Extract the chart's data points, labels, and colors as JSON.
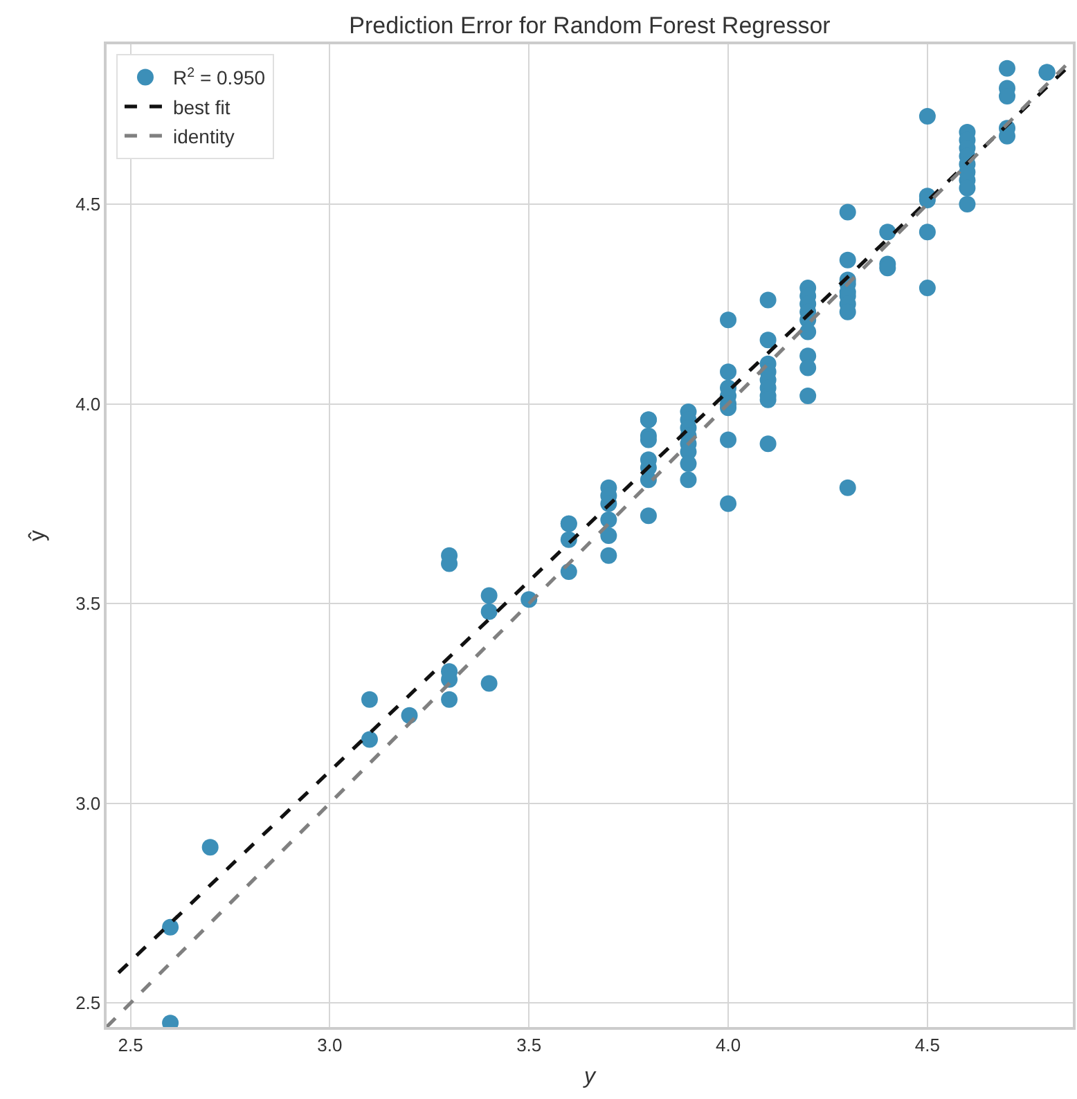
{
  "chart_data": {
    "type": "scatter",
    "title": "Prediction Error for Random Forest Regressor",
    "xlabel": "y",
    "ylabel": "ŷ",
    "xlim": [
      2.44,
      4.865
    ],
    "ylim": [
      2.44,
      4.9
    ],
    "xticks": [
      2.5,
      {
        "value": 3,
        "label": "3.0"
      },
      3.5,
      {
        "value": 4,
        "label": "4.0"
      },
      4.5
    ],
    "yticks": [
      2.5,
      {
        "value": 3,
        "label": "3.0"
      },
      3.5,
      {
        "value": 4,
        "label": "4.0"
      },
      4.5
    ],
    "grid": true,
    "legend": "top left",
    "marker": "circle",
    "series": [
      {
        "name": "R$^{2}$ = 0.950",
        "color": "#3c8fb8",
        "x": [
          2.6,
          2.6,
          2.7,
          3.1,
          3.1,
          3.2,
          3.3,
          3.3,
          3.3,
          3.3,
          3.3,
          3.4,
          3.4,
          3.4,
          3.5,
          3.6,
          3.6,
          3.6,
          3.6,
          3.7,
          3.7,
          3.7,
          3.7,
          3.7,
          3.7,
          3.8,
          3.8,
          3.8,
          3.8,
          3.8,
          3.8,
          3.8,
          3.8,
          3.9,
          3.9,
          3.9,
          3.9,
          3.9,
          3.9,
          3.9,
          3.9,
          4.0,
          4.0,
          4.0,
          4.0,
          4.0,
          4.0,
          4.0,
          4.0,
          4.1,
          4.1,
          4.1,
          4.1,
          4.1,
          4.1,
          4.1,
          4.1,
          4.1,
          4.2,
          4.2,
          4.2,
          4.2,
          4.2,
          4.2,
          4.2,
          4.2,
          4.2,
          4.3,
          4.3,
          4.3,
          4.3,
          4.3,
          4.3,
          4.3,
          4.3,
          4.3,
          4.4,
          4.4,
          4.4,
          4.5,
          4.5,
          4.5,
          4.5,
          4.5,
          4.6,
          4.6,
          4.6,
          4.6,
          4.6,
          4.6,
          4.6,
          4.6,
          4.6,
          4.7,
          4.7,
          4.7,
          4.7,
          4.7,
          4.8,
          4.8
        ],
        "values": [
          2.69,
          2.45,
          2.89,
          3.26,
          3.16,
          3.22,
          3.62,
          3.6,
          3.33,
          3.31,
          3.26,
          3.52,
          3.48,
          3.3,
          3.51,
          3.7,
          3.7,
          3.66,
          3.58,
          3.79,
          3.77,
          3.75,
          3.71,
          3.67,
          3.62,
          3.96,
          3.96,
          3.92,
          3.91,
          3.86,
          3.84,
          3.81,
          3.72,
          3.98,
          3.96,
          3.94,
          3.92,
          3.9,
          3.88,
          3.85,
          3.81,
          4.21,
          4.08,
          4.04,
          4.02,
          4.0,
          3.99,
          3.91,
          3.75,
          4.26,
          4.16,
          4.1,
          4.08,
          4.06,
          4.04,
          4.02,
          4.01,
          3.9,
          4.29,
          4.27,
          4.25,
          4.23,
          4.21,
          4.18,
          4.12,
          4.09,
          4.02,
          4.48,
          4.36,
          4.31,
          4.3,
          4.28,
          4.27,
          4.25,
          4.23,
          3.79,
          4.43,
          4.35,
          4.34,
          4.72,
          4.52,
          4.51,
          4.43,
          4.29,
          4.68,
          4.66,
          4.64,
          4.62,
          4.6,
          4.58,
          4.56,
          4.54,
          4.5,
          4.84,
          4.79,
          4.77,
          4.69,
          4.67,
          4.83,
          4.83
        ]
      },
      {
        "name": "best fit",
        "type": "line",
        "color": "#111111",
        "line_style": "dashed",
        "marker": "none",
        "x": [
          2.47,
          4.865
        ],
        "values": [
          2.576,
          4.855
        ]
      },
      {
        "name": "identity",
        "type": "line",
        "color": "#808080",
        "line_style": "dashed",
        "marker": "none",
        "x": [
          2.44,
          4.865
        ],
        "values": [
          2.44,
          4.865
        ]
      }
    ]
  }
}
